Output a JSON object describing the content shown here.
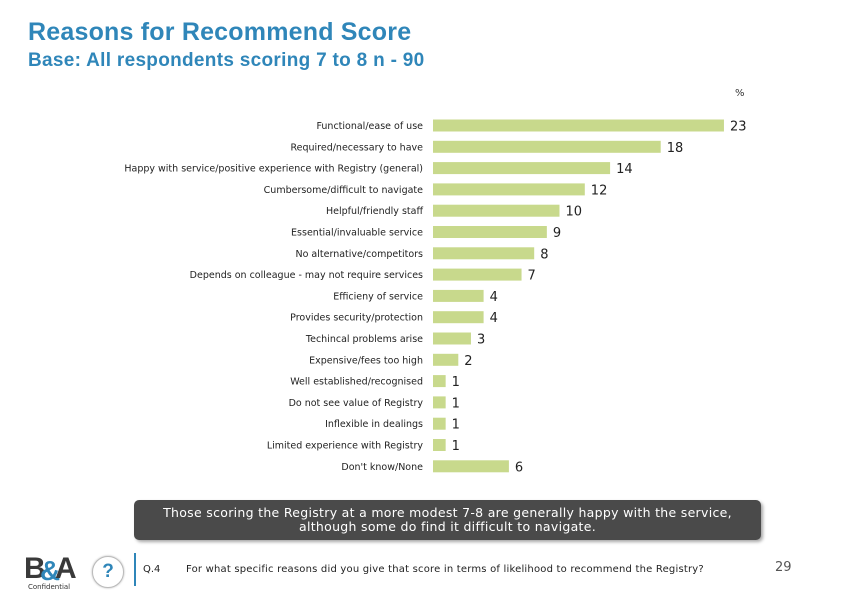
{
  "header": {
    "title": "Reasons for Recommend Score",
    "subtitle": "Base: All respondents scoring 7 to 8 n - 90"
  },
  "chart_data": {
    "type": "bar",
    "orientation": "horizontal",
    "unit_label": "%",
    "bar_color": "#c8d98c",
    "categories": [
      "Functional/ease of use",
      "Required/necessary to have",
      "Happy with service/positive experience with Registry (general)",
      "Cumbersome/difficult to navigate",
      "Helpful/friendly staff",
      "Essential/invaluable service",
      "No alternative/competitors",
      "Depends on colleague - may not require services",
      "Efficieny of service",
      "Provides security/protection",
      "Techincal problems arise",
      "Expensive/fees too high",
      "Well established/recognised",
      "Do not see value of Registry",
      "Inflexible in dealings",
      "Limited experience with Registry",
      "Don't know/None"
    ],
    "values": [
      23,
      18,
      14,
      12,
      10,
      9,
      8,
      7,
      4,
      4,
      3,
      2,
      1,
      1,
      1,
      1,
      6
    ]
  },
  "callout": {
    "line1": "Those scoring the Registry at a more modest 7-8 are generally happy with the service,",
    "line2": "although some do find it difficult to navigate."
  },
  "footer": {
    "logo_text": "B&A",
    "confidential": "Confidential",
    "question_mark": "?",
    "question_number": "Q.4",
    "question_text": "For what specific  reasons did you give that score in terms of likelihood to recommend the Registry?",
    "page_number": "29"
  }
}
